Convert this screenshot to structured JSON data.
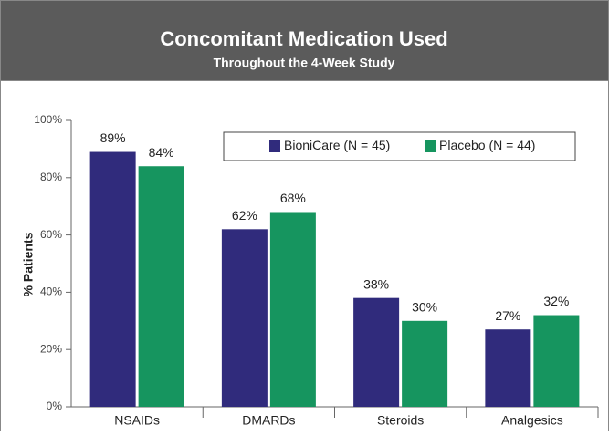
{
  "chart_data": {
    "type": "bar",
    "title": "Concomitant Medication Used",
    "subtitle": "Throughout the 4-Week Study",
    "y_label": "% Patients",
    "categories": [
      "NSAIDs",
      "DMARDs",
      "Steroids",
      "Analgesics"
    ],
    "series": [
      {
        "name": "BioniCare (N = 45)",
        "color": "#302b7c",
        "values": [
          89,
          62,
          38,
          27
        ],
        "value_labels": [
          "89%",
          "62%",
          "38%",
          "27%"
        ]
      },
      {
        "name": "Placebo (N = 44)",
        "color": "#16955f",
        "values": [
          84,
          68,
          30,
          32
        ],
        "value_labels": [
          "84%",
          "68%",
          "30%",
          "32%"
        ]
      }
    ],
    "ylim": [
      0,
      100
    ],
    "yticks": [
      {
        "value": 0,
        "label": "0%"
      },
      {
        "value": 20,
        "label": "20%"
      },
      {
        "value": 40,
        "label": "40%"
      },
      {
        "value": 60,
        "label": "60%"
      },
      {
        "value": 80,
        "label": "80%"
      },
      {
        "value": 100,
        "label": "100%"
      }
    ],
    "grid": false,
    "legend": "top-right"
  }
}
